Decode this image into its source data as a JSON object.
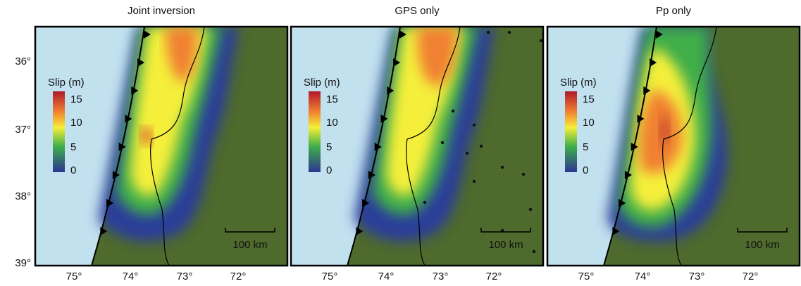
{
  "lat_labels": [
    "36°",
    "37°",
    "38°",
    "39°"
  ],
  "panels": [
    {
      "title": "Joint inversion",
      "colorbar": {
        "label": "Slip (m)",
        "ticks": [
          "15",
          "10",
          "5",
          "0"
        ]
      },
      "scale_bar": "100 km",
      "lon_labels": [
        "75°",
        "74°",
        "73°",
        "72°"
      ]
    },
    {
      "title": "GPS only",
      "colorbar": {
        "label": "Slip (m)",
        "ticks": [
          "15",
          "10",
          "5",
          "0"
        ]
      },
      "scale_bar": "100 km",
      "lon_labels": [
        "75°",
        "74°",
        "73°",
        "72°"
      ]
    },
    {
      "title": "Pp only",
      "colorbar": {
        "label": "Slip (m)",
        "ticks": [
          "15",
          "10",
          "5",
          "0"
        ]
      },
      "scale_bar": "100 km",
      "lon_labels": [
        "75°",
        "74°",
        "73°",
        "72°"
      ]
    }
  ]
}
